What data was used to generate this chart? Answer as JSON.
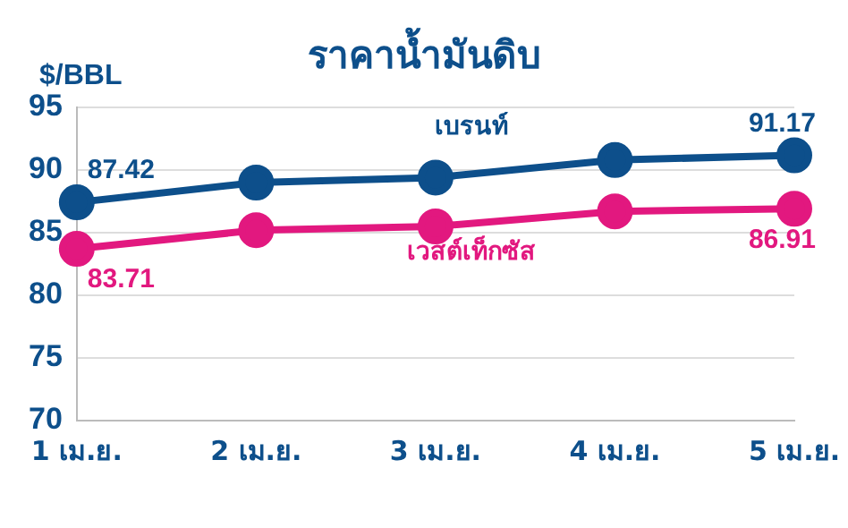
{
  "chart_data": {
    "type": "line",
    "title": "ราคาน้ำมันดิบ",
    "ylabel": "$/BBL",
    "categories": [
      "1 เม.ย.",
      "2 เม.ย.",
      "3 เม.ย.",
      "4 เม.ย.",
      "5 เม.ย."
    ],
    "series": [
      {
        "name": "เบรนท์",
        "color": "#0d4f8b",
        "values": [
          87.42,
          89.0,
          89.4,
          90.8,
          91.17
        ],
        "value_labels": [
          "87.42",
          null,
          null,
          null,
          "91.17"
        ]
      },
      {
        "name": "เวสต์เท็กซัส",
        "color": "#e2187f",
        "values": [
          83.71,
          85.2,
          85.5,
          86.7,
          86.91
        ],
        "value_labels": [
          "83.71",
          null,
          null,
          null,
          "86.91"
        ]
      }
    ],
    "ylim": [
      70,
      95
    ],
    "yticks": [
      70,
      75,
      80,
      85,
      90,
      95
    ],
    "grid": "y",
    "legend": false,
    "marker": "circle",
    "line_style": "solid"
  }
}
